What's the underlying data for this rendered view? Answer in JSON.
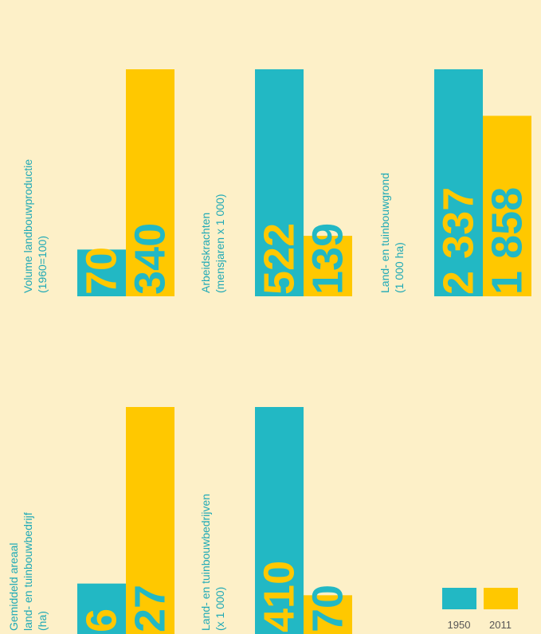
{
  "chart_data": [
    {
      "type": "bar",
      "title": [
        "Volume landbouwproductie",
        "(1960=100)"
      ],
      "values": [
        70,
        340
      ],
      "value_labels": [
        "70",
        "340"
      ]
    },
    {
      "type": "bar",
      "title": [
        "Arbeidskrachten",
        "(mensjaren x 1 000)"
      ],
      "values": [
        522,
        139
      ],
      "value_labels": [
        "522",
        "139"
      ]
    },
    {
      "type": "bar",
      "title": [
        "Land- en tuinbouwgrond",
        "(1 000 ha)"
      ],
      "values": [
        2337,
        1858
      ],
      "value_labels": [
        "2 337",
        "1 858"
      ]
    },
    {
      "type": "bar",
      "title": [
        "Gemiddeld areaal",
        "land- en tuinbouwbedrijf",
        "(ha)"
      ],
      "values": [
        6,
        27
      ],
      "value_labels": [
        "6",
        "27"
      ]
    },
    {
      "type": "bar",
      "title": [
        "Land- en tuinbouwbedrijven",
        "(x 1 000)"
      ],
      "values": [
        410,
        70
      ],
      "value_labels": [
        "410",
        "70"
      ]
    }
  ],
  "legend": {
    "labels": [
      "1950",
      "2011"
    ],
    "colors": [
      "#22b8c4",
      "#ffc800"
    ]
  }
}
